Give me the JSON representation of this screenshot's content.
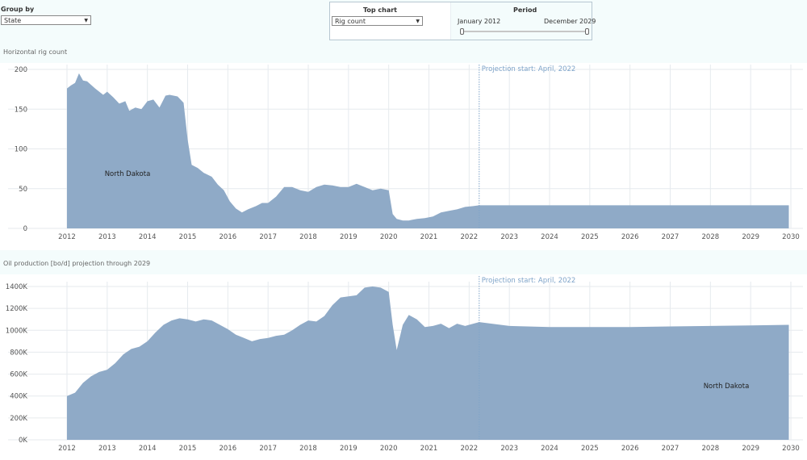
{
  "group_by": {
    "label": "Group by",
    "value": "State"
  },
  "top_chart": {
    "label": "Top chart",
    "value": "Rig count"
  },
  "period": {
    "label": "Period",
    "start": "January 2012",
    "end": "December 2029",
    "start_fraction": 0,
    "end_fraction": 1
  },
  "colors": {
    "area": "#8faac7",
    "grid": "#e6eaee",
    "projection_line": "#7fa4c9",
    "projection_text": "#7fa4c9"
  },
  "chart_data": [
    {
      "type": "area",
      "title": "Horizontal rig count",
      "series_label": "North Dakota",
      "annotation": "Projection start: April, 2022",
      "projection_x": 2022.25,
      "x_ticks": [
        "2012",
        "2013",
        "2014",
        "2015",
        "2016",
        "2017",
        "2018",
        "2019",
        "2020",
        "2021",
        "2022",
        "2023",
        "2024",
        "2025",
        "2026",
        "2027",
        "2028",
        "2029",
        "2030"
      ],
      "y_ticks": [
        "200",
        "150",
        "100",
        "50",
        "0"
      ],
      "ylim": [
        0,
        200
      ],
      "xlim": [
        2012,
        2030
      ],
      "x": [
        2012.0,
        2012.1,
        2012.2,
        2012.3,
        2012.4,
        2012.5,
        2012.7,
        2012.9,
        2013.0,
        2013.15,
        2013.3,
        2013.45,
        2013.55,
        2013.7,
        2013.85,
        2014.0,
        2014.15,
        2014.3,
        2014.45,
        2014.55,
        2014.75,
        2014.9,
        2015.0,
        2015.1,
        2015.25,
        2015.4,
        2015.6,
        2015.75,
        2015.9,
        2016.05,
        2016.2,
        2016.35,
        2016.5,
        2016.7,
        2016.85,
        2017.0,
        2017.2,
        2017.4,
        2017.6,
        2017.8,
        2018.0,
        2018.2,
        2018.4,
        2018.6,
        2018.8,
        2019.0,
        2019.2,
        2019.4,
        2019.6,
        2019.8,
        2020.0,
        2020.1,
        2020.2,
        2020.35,
        2020.5,
        2020.7,
        2020.9,
        2021.1,
        2021.3,
        2021.5,
        2021.7,
        2021.9,
        2022.1,
        2022.25,
        2023,
        2024,
        2025,
        2026,
        2027,
        2028,
        2029,
        2029.95
      ],
      "y": [
        176,
        180,
        183,
        195,
        186,
        185,
        176,
        168,
        172,
        165,
        157,
        160,
        148,
        152,
        150,
        160,
        162,
        152,
        167,
        168,
        166,
        158,
        112,
        80,
        76,
        70,
        65,
        55,
        48,
        34,
        25,
        20,
        24,
        28,
        32,
        32,
        40,
        52,
        52,
        48,
        46,
        52,
        55,
        54,
        52,
        52,
        56,
        52,
        48,
        50,
        48,
        18,
        12,
        10,
        10,
        12,
        13,
        15,
        20,
        22,
        24,
        27,
        28,
        29,
        29,
        29,
        29,
        29,
        29,
        29,
        29,
        29
      ]
    },
    {
      "type": "area",
      "title": "Oil production [bo/d] projection through 2029",
      "series_label": "North Dakota",
      "annotation": "Projection start: April, 2022",
      "projection_x": 2022.25,
      "x_ticks": [
        "2012",
        "2013",
        "2014",
        "2015",
        "2016",
        "2017",
        "2018",
        "2019",
        "2020",
        "2021",
        "2022",
        "2023",
        "2024",
        "2025",
        "2026",
        "2027",
        "2028",
        "2029",
        "2030"
      ],
      "y_ticks": [
        "1400K",
        "1200K",
        "1000K",
        "800K",
        "600K",
        "400K",
        "200K",
        "0K"
      ],
      "ylim": [
        0,
        1400
      ],
      "xlim": [
        2012,
        2030
      ],
      "x": [
        2012.0,
        2012.2,
        2012.4,
        2012.6,
        2012.8,
        2013.0,
        2013.2,
        2013.4,
        2013.6,
        2013.8,
        2014.0,
        2014.2,
        2014.4,
        2014.6,
        2014.8,
        2015.0,
        2015.2,
        2015.4,
        2015.6,
        2015.8,
        2016.0,
        2016.2,
        2016.4,
        2016.6,
        2016.8,
        2017.0,
        2017.2,
        2017.4,
        2017.6,
        2017.8,
        2018.0,
        2018.2,
        2018.4,
        2018.6,
        2018.8,
        2019.0,
        2019.2,
        2019.4,
        2019.6,
        2019.8,
        2020.0,
        2020.1,
        2020.2,
        2020.35,
        2020.5,
        2020.7,
        2020.9,
        2021.1,
        2021.3,
        2021.5,
        2021.7,
        2021.9,
        2022.0,
        2022.25,
        2023,
        2024,
        2025,
        2026,
        2027,
        2028,
        2029,
        2029.95
      ],
      "y": [
        400,
        430,
        520,
        580,
        620,
        640,
        700,
        780,
        830,
        850,
        900,
        980,
        1050,
        1090,
        1110,
        1100,
        1080,
        1100,
        1090,
        1050,
        1010,
        960,
        930,
        900,
        920,
        930,
        950,
        960,
        1000,
        1050,
        1090,
        1080,
        1130,
        1230,
        1300,
        1310,
        1320,
        1390,
        1400,
        1390,
        1350,
        1050,
        820,
        1050,
        1140,
        1100,
        1030,
        1040,
        1060,
        1020,
        1060,
        1040,
        1050,
        1075,
        1040,
        1030,
        1030,
        1030,
        1035,
        1040,
        1045,
        1050
      ]
    }
  ]
}
